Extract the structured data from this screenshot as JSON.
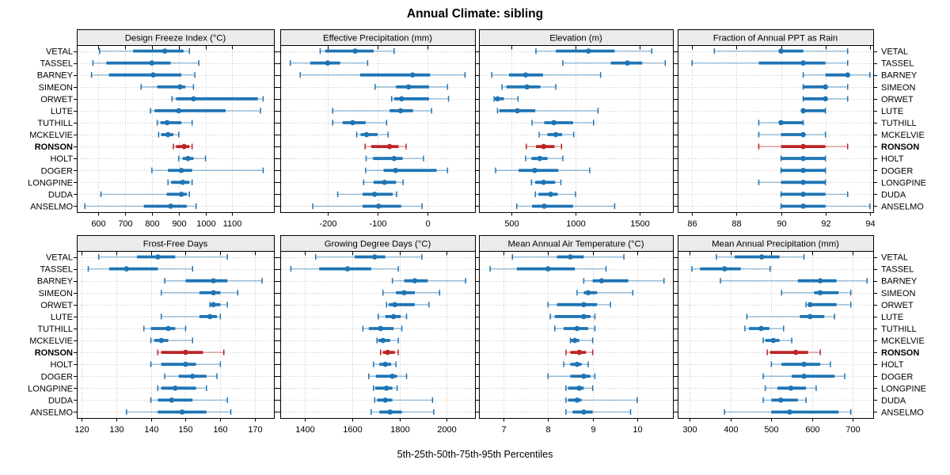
{
  "title": "Annual Climate: sibling",
  "caption": "5th-25th-50th-75th-95th Percentiles",
  "highlight_station": "RONSON",
  "stations": [
    "VETAL",
    "TASSEL",
    "BARNEY",
    "SIMEON",
    "ORWET",
    "LUTE",
    "TUTHILL",
    "MCKELVIE",
    "RONSON",
    "HOLT",
    "DOGER",
    "LONGPINE",
    "DUDA",
    "ANSELMO"
  ],
  "colors": {
    "series": "#1F74B4",
    "highlight": "#C02425",
    "grid": "#C9C9C9",
    "strip_bg": "#EBEBEB",
    "border": "#000000",
    "panel_bg": "#FFFFFF"
  },
  "chart_data": {
    "type": "interval-dotplot-trellis",
    "layout": {
      "rows": 2,
      "cols": 4,
      "grid": true,
      "legend": "none"
    },
    "percentiles": [
      "5th",
      "25th",
      "50th",
      "75th",
      "95th"
    ],
    "panels": [
      {
        "title": "Design Freeze Index (°C)",
        "ticks": [
          600,
          700,
          800,
          900,
          1000,
          1100
        ],
        "xlim": [
          520,
          1255
        ],
        "values": [
          [
            605,
            730,
            848,
            918,
            940
          ],
          [
            580,
            630,
            800,
            870,
            975
          ],
          [
            575,
            640,
            805,
            910,
            960
          ],
          [
            760,
            820,
            905,
            925,
            955
          ],
          [
            875,
            890,
            955,
            1195,
            1215
          ],
          [
            795,
            810,
            900,
            1075,
            1205
          ],
          [
            820,
            832,
            857,
            910,
            950
          ],
          [
            825,
            835,
            860,
            880,
            900
          ],
          [
            880,
            890,
            920,
            940,
            950
          ],
          [
            900,
            915,
            935,
            955,
            1000
          ],
          [
            800,
            860,
            910,
            950,
            1215
          ],
          [
            860,
            872,
            915,
            940,
            950
          ],
          [
            610,
            855,
            910,
            930,
            940
          ],
          [
            550,
            770,
            870,
            930,
            965
          ]
        ]
      },
      {
        "title": "Effective Precipitation (mm)",
        "ticks": [
          -200,
          -100,
          0
        ],
        "xlim": [
          -295,
          95
        ],
        "values": [
          [
            -215,
            -205,
            -145,
            -108,
            -67
          ],
          [
            -275,
            -235,
            -200,
            -175,
            -120
          ],
          [
            -255,
            -135,
            -30,
            5,
            75
          ],
          [
            -105,
            -63,
            -38,
            3,
            40
          ],
          [
            -72,
            -67,
            -52,
            3,
            42
          ],
          [
            -190,
            -76,
            -54,
            -29,
            8
          ],
          [
            -190,
            -170,
            -150,
            -124,
            -82
          ],
          [
            -142,
            -134,
            -122,
            -100,
            -79
          ],
          [
            -125,
            -113,
            -76,
            -58,
            -43
          ],
          [
            -123,
            -109,
            -67,
            -50,
            -8
          ],
          [
            -124,
            -88,
            -64,
            18,
            40
          ],
          [
            -128,
            -108,
            -86,
            -63,
            -49
          ],
          [
            -180,
            -130,
            -106,
            -70,
            -62
          ],
          [
            -230,
            -130,
            -98,
            -53,
            -11
          ]
        ]
      },
      {
        "title": "Elevation (m)",
        "ticks": [
          500,
          1000,
          1500
        ],
        "xlim": [
          245,
          1760
        ],
        "values": [
          [
            690,
            845,
            1100,
            1305,
            1595
          ],
          [
            900,
            1275,
            1405,
            1520,
            1700
          ],
          [
            345,
            480,
            610,
            745,
            1195
          ],
          [
            425,
            460,
            620,
            725,
            845
          ],
          [
            363,
            368,
            390,
            440,
            550
          ],
          [
            390,
            405,
            545,
            685,
            1175
          ],
          [
            660,
            755,
            830,
            980,
            1140
          ],
          [
            715,
            780,
            845,
            895,
            985
          ],
          [
            615,
            690,
            750,
            835,
            890
          ],
          [
            610,
            655,
            720,
            780,
            900
          ],
          [
            375,
            555,
            680,
            865,
            1110
          ],
          [
            655,
            685,
            750,
            840,
            885
          ],
          [
            685,
            710,
            805,
            860,
            1000
          ],
          [
            540,
            660,
            755,
            980,
            1305
          ]
        ]
      },
      {
        "title": "Fraction of Annual PPT as Rain",
        "ticks": [
          86,
          88,
          90,
          92,
          94
        ],
        "xlim": [
          85.35,
          94.15
        ],
        "values": [
          [
            87,
            90,
            90,
            91,
            93
          ],
          [
            86,
            89,
            91,
            92,
            93
          ],
          [
            91,
            92,
            93,
            93,
            94
          ],
          [
            91,
            91,
            92,
            92,
            93
          ],
          [
            91,
            91,
            92,
            92,
            93
          ],
          [
            91,
            91,
            91,
            92,
            92
          ],
          [
            89,
            90,
            90,
            91,
            91
          ],
          [
            89,
            90,
            91,
            91,
            92
          ],
          [
            89,
            90,
            91,
            92,
            93
          ],
          [
            90,
            90,
            91,
            92,
            92
          ],
          [
            90,
            90,
            91,
            92,
            92
          ],
          [
            89,
            90,
            91,
            92,
            92
          ],
          [
            90,
            90,
            91,
            92,
            93
          ],
          [
            90,
            90,
            91,
            92,
            94
          ]
        ]
      },
      {
        "title": "Frost-Free Days",
        "ticks": [
          120,
          130,
          140,
          150,
          160,
          170
        ],
        "xlim": [
          118.7,
          175.4
        ],
        "values": [
          [
            125,
            136,
            142,
            147,
            162
          ],
          [
            122,
            128,
            133,
            142,
            152
          ],
          [
            144,
            150,
            158,
            162,
            172
          ],
          [
            143,
            154,
            158,
            160,
            165
          ],
          [
            157,
            157,
            158,
            160,
            162
          ],
          [
            143,
            154,
            157,
            159,
            160
          ],
          [
            138,
            140,
            145,
            147,
            150
          ],
          [
            140,
            141,
            143,
            145,
            152
          ],
          [
            142,
            143,
            150,
            155,
            161
          ],
          [
            140,
            143,
            150,
            153,
            160
          ],
          [
            144,
            148,
            152,
            156,
            159
          ],
          [
            142,
            143,
            147,
            153,
            156
          ],
          [
            140,
            142,
            146,
            152,
            162
          ],
          [
            133,
            142,
            149,
            156,
            163
          ]
        ]
      },
      {
        "title": "Growing Degree Days (°C)",
        "ticks": [
          1400,
          1600,
          1800,
          2000
        ],
        "xlim": [
          1295,
          2120
        ],
        "values": [
          [
            1445,
            1610,
            1695,
            1740,
            1895
          ],
          [
            1340,
            1460,
            1580,
            1680,
            1795
          ],
          [
            1770,
            1820,
            1865,
            1920,
            2080
          ],
          [
            1730,
            1785,
            1820,
            1865,
            1970
          ],
          [
            1745,
            1755,
            1780,
            1865,
            1925
          ],
          [
            1710,
            1740,
            1775,
            1805,
            1830
          ],
          [
            1645,
            1670,
            1720,
            1775,
            1810
          ],
          [
            1705,
            1710,
            1730,
            1760,
            1795
          ],
          [
            1720,
            1730,
            1750,
            1780,
            1795
          ],
          [
            1690,
            1715,
            1740,
            1765,
            1785
          ],
          [
            1670,
            1700,
            1770,
            1790,
            1830
          ],
          [
            1690,
            1697,
            1745,
            1770,
            1790
          ],
          [
            1695,
            1705,
            1740,
            1770,
            1940
          ],
          [
            1680,
            1715,
            1760,
            1810,
            1945
          ]
        ]
      },
      {
        "title": "Mean Annual Air Temperature (°C)",
        "ticks": [
          7,
          8,
          9,
          10
        ],
        "xlim": [
          6.45,
          10.8
        ],
        "values": [
          [
            7.2,
            8.2,
            8.5,
            8.8,
            9.7
          ],
          [
            6.7,
            7.3,
            8.0,
            8.6,
            9.3
          ],
          [
            8.8,
            9.0,
            9.2,
            9.8,
            10.6
          ],
          [
            8.65,
            8.8,
            8.9,
            9.1,
            9.9
          ],
          [
            8.0,
            8.2,
            8.8,
            9.1,
            9.4
          ],
          [
            8.05,
            8.15,
            8.8,
            8.95,
            9.05
          ],
          [
            8.15,
            8.35,
            8.65,
            8.9,
            9.05
          ],
          [
            8.5,
            8.5,
            8.6,
            8.7,
            9.0
          ],
          [
            8.4,
            8.5,
            8.7,
            8.85,
            9.0
          ],
          [
            8.35,
            8.5,
            8.65,
            8.75,
            8.9
          ],
          [
            8.0,
            8.5,
            8.8,
            8.95,
            9.05
          ],
          [
            8.4,
            8.45,
            8.7,
            8.8,
            9.0
          ],
          [
            8.4,
            8.45,
            8.65,
            8.75,
            10.0
          ],
          [
            8.4,
            8.55,
            8.8,
            9.0,
            9.85
          ]
        ]
      },
      {
        "title": "Mean Annual Precipitation (mm)",
        "ticks": [
          300,
          400,
          500,
          600,
          700
        ],
        "xlim": [
          270,
          750
        ],
        "values": [
          [
            365,
            410,
            476,
            520,
            580
          ],
          [
            305,
            325,
            385,
            425,
            497
          ],
          [
            375,
            565,
            620,
            660,
            735
          ],
          [
            525,
            605,
            620,
            665,
            695
          ],
          [
            585,
            590,
            595,
            660,
            695
          ],
          [
            440,
            570,
            595,
            630,
            655
          ],
          [
            435,
            445,
            475,
            495,
            530
          ],
          [
            480,
            485,
            505,
            520,
            550
          ],
          [
            490,
            497,
            560,
            590,
            620
          ],
          [
            500,
            525,
            580,
            620,
            645
          ],
          [
            480,
            550,
            580,
            655,
            680
          ],
          [
            485,
            515,
            548,
            585,
            610
          ],
          [
            480,
            500,
            523,
            565,
            585
          ],
          [
            385,
            500,
            545,
            665,
            695
          ]
        ]
      }
    ]
  }
}
